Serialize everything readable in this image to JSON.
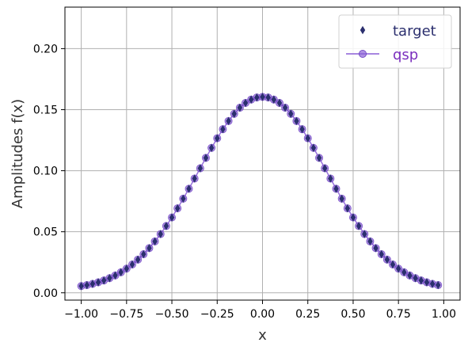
{
  "chart_data": {
    "type": "scatter",
    "title": "",
    "xlabel": "x",
    "ylabel": "Amplitudes f(x)",
    "xlim": [
      -1.09,
      1.09
    ],
    "ylim": [
      -0.006,
      0.234
    ],
    "xticks": [
      -1.0,
      -0.75,
      -0.5,
      -0.25,
      0.0,
      0.25,
      0.5,
      0.75,
      1.0
    ],
    "xtick_labels": [
      "−1.00",
      "−0.75",
      "−0.50",
      "−0.25",
      "0.00",
      "0.25",
      "0.50",
      "0.75",
      "1.00"
    ],
    "yticks": [
      0.0,
      0.05,
      0.1,
      0.15,
      0.2
    ],
    "ytick_labels": [
      "0.00",
      "0.05",
      "0.10",
      "0.15",
      "0.20"
    ],
    "grid": true,
    "legend_position": "top-right",
    "series": [
      {
        "name": "target",
        "marker": "thin-diamond",
        "color": "#2b2f6e",
        "x": [
          -1.0,
          -0.96875,
          -0.9375,
          -0.90625,
          -0.875,
          -0.84375,
          -0.8125,
          -0.78125,
          -0.75,
          -0.71875,
          -0.6875,
          -0.65625,
          -0.625,
          -0.59375,
          -0.5625,
          -0.53125,
          -0.5,
          -0.46875,
          -0.4375,
          -0.40625,
          -0.375,
          -0.34375,
          -0.3125,
          -0.28125,
          -0.25,
          -0.21875,
          -0.1875,
          -0.15625,
          -0.125,
          -0.09375,
          -0.0625,
          -0.03125,
          0.0,
          0.03125,
          0.0625,
          0.09375,
          0.125,
          0.15625,
          0.1875,
          0.21875,
          0.25,
          0.28125,
          0.3125,
          0.34375,
          0.375,
          0.40625,
          0.4375,
          0.46875,
          0.5,
          0.53125,
          0.5625,
          0.59375,
          0.625,
          0.65625,
          0.6875,
          0.71875,
          0.75,
          0.78125,
          0.8125,
          0.84375,
          0.875,
          0.90625,
          0.9375,
          0.96875
        ],
        "y": [
          0.0055,
          0.0063,
          0.0073,
          0.0086,
          0.0101,
          0.012,
          0.0142,
          0.0168,
          0.0198,
          0.0232,
          0.0272,
          0.0316,
          0.0366,
          0.0421,
          0.0481,
          0.0547,
          0.0617,
          0.0692,
          0.0771,
          0.0852,
          0.0936,
          0.102,
          0.1105,
          0.1187,
          0.1266,
          0.134,
          0.1407,
          0.1466,
          0.1516,
          0.1555,
          0.1583,
          0.16,
          0.1605,
          0.16,
          0.1583,
          0.1555,
          0.1516,
          0.1466,
          0.1407,
          0.134,
          0.1266,
          0.1187,
          0.1105,
          0.102,
          0.0936,
          0.0852,
          0.0771,
          0.0692,
          0.0617,
          0.0547,
          0.0481,
          0.0421,
          0.0366,
          0.0316,
          0.0272,
          0.0232,
          0.0198,
          0.0168,
          0.0142,
          0.012,
          0.0101,
          0.0086,
          0.0073,
          0.0063
        ]
      },
      {
        "name": "qsp",
        "marker": "circle",
        "line": true,
        "color": "#8a5fd6",
        "x": [
          -1.0,
          -0.96875,
          -0.9375,
          -0.90625,
          -0.875,
          -0.84375,
          -0.8125,
          -0.78125,
          -0.75,
          -0.71875,
          -0.6875,
          -0.65625,
          -0.625,
          -0.59375,
          -0.5625,
          -0.53125,
          -0.5,
          -0.46875,
          -0.4375,
          -0.40625,
          -0.375,
          -0.34375,
          -0.3125,
          -0.28125,
          -0.25,
          -0.21875,
          -0.1875,
          -0.15625,
          -0.125,
          -0.09375,
          -0.0625,
          -0.03125,
          0.0,
          0.03125,
          0.0625,
          0.09375,
          0.125,
          0.15625,
          0.1875,
          0.21875,
          0.25,
          0.28125,
          0.3125,
          0.34375,
          0.375,
          0.40625,
          0.4375,
          0.46875,
          0.5,
          0.53125,
          0.5625,
          0.59375,
          0.625,
          0.65625,
          0.6875,
          0.71875,
          0.75,
          0.78125,
          0.8125,
          0.84375,
          0.875,
          0.90625,
          0.9375,
          0.96875
        ],
        "y": [
          0.0055,
          0.0063,
          0.0073,
          0.0086,
          0.0101,
          0.012,
          0.0142,
          0.0168,
          0.0198,
          0.0232,
          0.0272,
          0.0316,
          0.0366,
          0.0421,
          0.0481,
          0.0547,
          0.0617,
          0.0692,
          0.0771,
          0.0852,
          0.0936,
          0.102,
          0.1105,
          0.1187,
          0.1266,
          0.134,
          0.1407,
          0.1466,
          0.1516,
          0.1555,
          0.1583,
          0.16,
          0.1605,
          0.16,
          0.1583,
          0.1555,
          0.1516,
          0.1466,
          0.1407,
          0.134,
          0.1266,
          0.1187,
          0.1105,
          0.102,
          0.0936,
          0.0852,
          0.0771,
          0.0692,
          0.0617,
          0.0547,
          0.0481,
          0.0421,
          0.0366,
          0.0316,
          0.0272,
          0.0232,
          0.0198,
          0.0168,
          0.0142,
          0.012,
          0.0101,
          0.0086,
          0.0073,
          0.0063
        ]
      }
    ],
    "colors": {
      "grid": "#b0b0b0",
      "axis": "#000000",
      "target_legend_text": "#2b2f6e",
      "qsp_legend_text": "#7b2fbe"
    }
  }
}
